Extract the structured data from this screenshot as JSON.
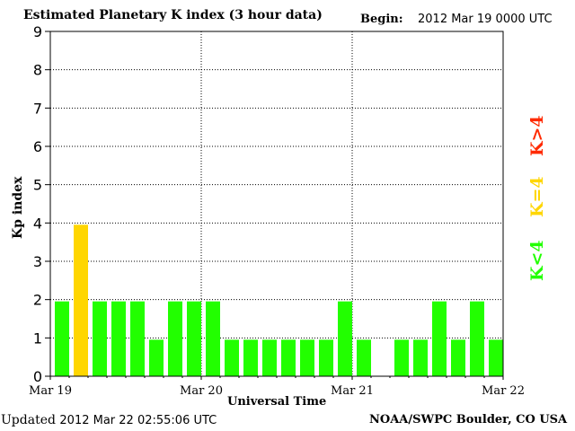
{
  "header": {
    "title": "Estimated Planetary K index (3 hour data)",
    "begin_label": "Begin:",
    "begin_value": "2012 Mar 19 0000 UTC"
  },
  "footer": {
    "updated_label": "Updated",
    "updated_value": "2012 Mar 22 02:55:06 UTC",
    "credit": "NOAA/SWPC Boulder, CO USA"
  },
  "legend": {
    "low": "K<4",
    "equal": "K=4",
    "high": "K>4",
    "colors": {
      "low": "#22ff00",
      "equal": "#ffd600",
      "high": "#ff2a00"
    }
  },
  "chart_data": {
    "type": "bar",
    "title": "Estimated Planetary K index (3 hour data)",
    "xlabel": "Universal Time",
    "ylabel": "Kp index",
    "ylim": [
      0,
      9
    ],
    "yticks": [
      0,
      1,
      2,
      3,
      4,
      5,
      6,
      7,
      8,
      9
    ],
    "x_tick_labels": [
      "Mar 19",
      "Mar 20",
      "Mar 21",
      "Mar 22"
    ],
    "interval_hours": 3,
    "grid": true,
    "series": [
      {
        "values": [
          2,
          4,
          2,
          2,
          2,
          1,
          2,
          2,
          2,
          1,
          1,
          1,
          1,
          1,
          1,
          2,
          1,
          null,
          1,
          1,
          2,
          1,
          2,
          1
        ]
      }
    ]
  }
}
